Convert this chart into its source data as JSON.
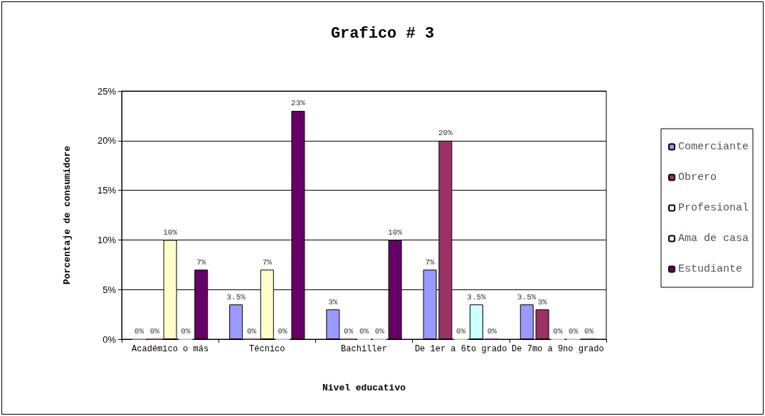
{
  "chart_data": {
    "type": "bar",
    "title": "Grafico # 3",
    "xlabel": "Nivel educativo",
    "ylabel": "Porcentaje de consumidore",
    "categories": [
      "Académico o más",
      "Técnico",
      "Bachiller",
      "De 1er a 6to grado",
      "De 7mo a 9no grado"
    ],
    "series": [
      {
        "name": "Comerciante",
        "color": "#9999ff",
        "values": [
          0,
          3.5,
          3,
          7,
          3.5
        ],
        "value_labels": [
          "0%",
          "3.5%",
          "3%",
          "7%",
          "3.5%"
        ]
      },
      {
        "name": "Obrero",
        "color": "#993366",
        "values": [
          0,
          0,
          0,
          20,
          3
        ],
        "value_labels": [
          "0%",
          "0%",
          "0%",
          "20%",
          "3%"
        ]
      },
      {
        "name": "Profesional",
        "color": "#ffffcc",
        "values": [
          10,
          7,
          0,
          0,
          0
        ],
        "value_labels": [
          "10%",
          "7%",
          "0%",
          "0%",
          "0%"
        ]
      },
      {
        "name": "Ama de casa",
        "color": "#ccffff",
        "values": [
          0,
          0,
          0,
          3.5,
          0
        ],
        "value_labels": [
          "0%",
          "0%",
          "0%",
          "3.5%",
          "0%"
        ]
      },
      {
        "name": "Estudiante",
        "color": "#660066",
        "values": [
          7,
          23,
          10,
          0,
          0
        ],
        "value_labels": [
          "7%",
          "23%",
          "10%",
          "0%",
          "0%"
        ]
      }
    ],
    "ylim": [
      0,
      25
    ],
    "yticks": [
      {
        "value": 0,
        "label": "0%"
      },
      {
        "value": 5,
        "label": "5%"
      },
      {
        "value": 10,
        "label": "10%"
      },
      {
        "value": 15,
        "label": "15%"
      },
      {
        "value": 20,
        "label": "20%"
      },
      {
        "value": 25,
        "label": "25%"
      }
    ],
    "grid": "y",
    "legend": "right"
  }
}
